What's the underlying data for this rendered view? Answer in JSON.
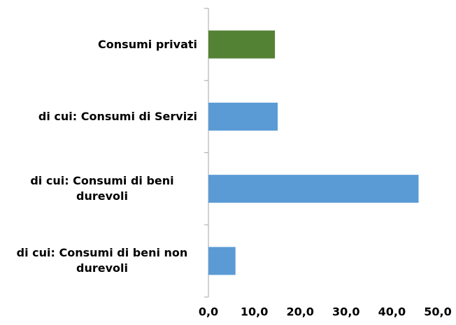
{
  "chart_data": {
    "type": "bar",
    "orientation": "horizontal",
    "categories": [
      "Consumi privati",
      "di cui: Consumi di Servizi",
      "di cui: Consumi di beni durevoli",
      "di cui: Consumi di beni non durevoli"
    ],
    "values": [
      14.5,
      15.1,
      45.8,
      5.9
    ],
    "colors": [
      "#548235",
      "#5b9bd5",
      "#5b9bd5",
      "#5b9bd5"
    ],
    "xlim": [
      0,
      50
    ],
    "xticks": [
      {
        "value": 0,
        "label": "0,0"
      },
      {
        "value": 10,
        "label": "10,0"
      },
      {
        "value": 20,
        "label": "20,0"
      },
      {
        "value": 30,
        "label": "30,0"
      },
      {
        "value": 40,
        "label": "40,0"
      },
      {
        "value": 50,
        "label": "50,0"
      }
    ],
    "grid": false
  }
}
